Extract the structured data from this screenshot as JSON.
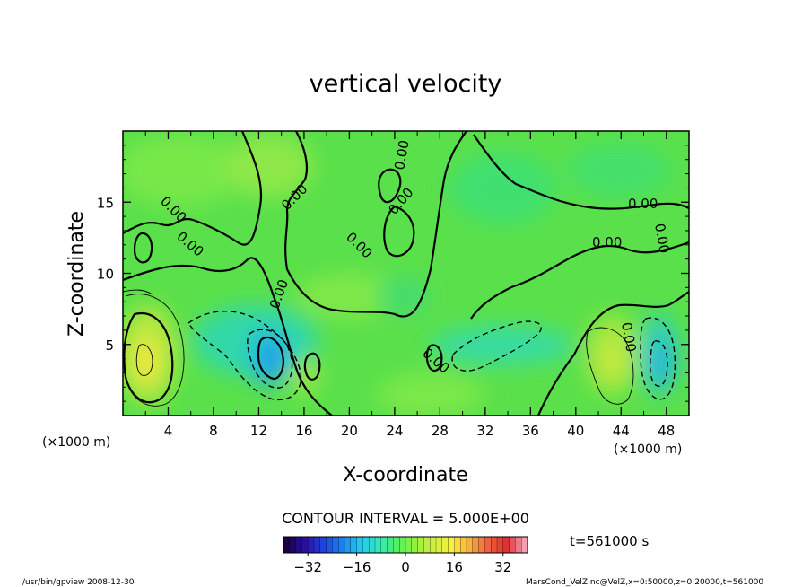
{
  "chart_data": {
    "type": "contour",
    "title": "vertical velocity",
    "xlabel": "X-coordinate",
    "ylabel": "Z-coordinate",
    "x_unit": "(×1000 m)",
    "y_unit": "(×1000 m)",
    "xlim": [
      0,
      50
    ],
    "ylim": [
      0,
      20
    ],
    "x_ticks": [
      4,
      8,
      12,
      16,
      20,
      24,
      28,
      32,
      36,
      40,
      44,
      48
    ],
    "y_ticks": [
      5,
      10,
      15
    ],
    "contour_interval_text": "CONTOUR INTERVAL = 5.000E+00",
    "contour_labels": [
      "0.00",
      "0.00",
      "0.00",
      "0.00",
      "0.00",
      "0.00",
      "0.00",
      "0.00",
      "0.00",
      "0.00",
      "0.00",
      "0.00"
    ],
    "colorbar": {
      "range": [
        -40,
        40
      ],
      "ticks": [
        -32,
        -16,
        0,
        16,
        32
      ],
      "colors": [
        "#1a0040",
        "#2a10a0",
        "#2040e0",
        "#1a80f0",
        "#20c8f0",
        "#30e8c0",
        "#50f060",
        "#90f040",
        "#d0f040",
        "#f8f040",
        "#f8b040",
        "#f06040",
        "#e03030",
        "#f0a0b0"
      ]
    },
    "features": [
      {
        "kind": "updraft",
        "x": 2,
        "z": 3.8,
        "peak": 15
      },
      {
        "kind": "downdraft",
        "x": 13.2,
        "z": 3.8,
        "peak": -18
      },
      {
        "kind": "downdraft",
        "x": 33,
        "z": 5,
        "peak": -6
      },
      {
        "kind": "updraft",
        "x": 43.5,
        "z": 3.5,
        "peak": 10
      },
      {
        "kind": "downdraft",
        "x": 47,
        "z": 4,
        "peak": -12
      }
    ],
    "time_label": "t=561000 s"
  },
  "footer": {
    "left": "/usr/bin/gpview  2008-12-30",
    "right": "MarsCond_VelZ.nc@VelZ,x=0:50000,z=0:20000,t=561000"
  }
}
